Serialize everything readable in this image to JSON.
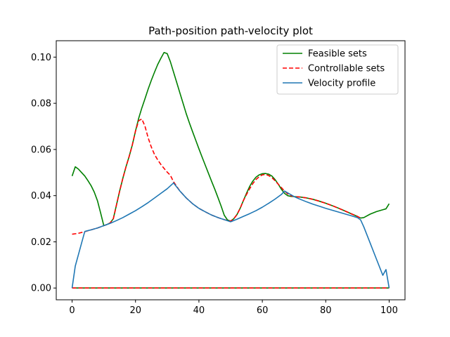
{
  "chart_data": {
    "type": "line",
    "title": "Path-position path-velocity plot",
    "xlabel": "",
    "ylabel": "",
    "xlim": [
      -5,
      105
    ],
    "ylim": [
      -0.0051,
      0.1071
    ],
    "xticks": [
      0,
      20,
      40,
      60,
      80,
      100
    ],
    "xtick_labels": [
      "0",
      "20",
      "40",
      "60",
      "80",
      "100"
    ],
    "yticks": [
      0.0,
      0.02,
      0.04,
      0.06,
      0.08,
      0.1
    ],
    "ytick_labels": [
      "0.00",
      "0.02",
      "0.04",
      "0.06",
      "0.08",
      "0.10"
    ],
    "grid": false,
    "legend_position": "top-right",
    "series": [
      {
        "name": "Feasible sets",
        "color": "#008000",
        "style": "solid",
        "upper": [
          [
            0,
            0.0485
          ],
          [
            1,
            0.0525
          ],
          [
            2,
            0.0515
          ],
          [
            3,
            0.05
          ],
          [
            4,
            0.0485
          ],
          [
            5,
            0.0465
          ],
          [
            6,
            0.0443
          ],
          [
            7,
            0.0415
          ],
          [
            8,
            0.0378
          ],
          [
            9,
            0.0325
          ],
          [
            10,
            0.027
          ],
          [
            11,
            0.0275
          ],
          [
            12,
            0.0282
          ],
          [
            13,
            0.03
          ],
          [
            14,
            0.036
          ],
          [
            15,
            0.042
          ],
          [
            16,
            0.0475
          ],
          [
            17,
            0.0525
          ],
          [
            18,
            0.057
          ],
          [
            19,
            0.062
          ],
          [
            20,
            0.068
          ],
          [
            21,
            0.0735
          ],
          [
            22,
            0.078
          ],
          [
            23,
            0.082
          ],
          [
            24,
            0.0862
          ],
          [
            25,
            0.09
          ],
          [
            26,
            0.0935
          ],
          [
            27,
            0.0968
          ],
          [
            28,
            0.0995
          ],
          [
            29,
            0.102
          ],
          [
            30,
            0.1015
          ],
          [
            31,
            0.098
          ],
          [
            32,
            0.0935
          ],
          [
            33,
            0.089
          ],
          [
            34,
            0.0845
          ],
          [
            35,
            0.08
          ],
          [
            36,
            0.0755
          ],
          [
            37,
            0.0715
          ],
          [
            38,
            0.0677
          ],
          [
            39,
            0.064
          ],
          [
            40,
            0.0603
          ],
          [
            41,
            0.0567
          ],
          [
            42,
            0.0532
          ],
          [
            43,
            0.0497
          ],
          [
            44,
            0.0462
          ],
          [
            45,
            0.0428
          ],
          [
            46,
            0.0392
          ],
          [
            47,
            0.0355
          ],
          [
            48,
            0.0315
          ],
          [
            49,
            0.0295
          ],
          [
            50,
            0.029
          ],
          [
            51,
            0.03
          ],
          [
            52,
            0.0318
          ],
          [
            53,
            0.0345
          ],
          [
            54,
            0.0378
          ],
          [
            55,
            0.041
          ],
          [
            56,
            0.044
          ],
          [
            57,
            0.0463
          ],
          [
            58,
            0.048
          ],
          [
            59,
            0.049
          ],
          [
            60,
            0.0495
          ],
          [
            61,
            0.0496
          ],
          [
            62,
            0.0493
          ],
          [
            63,
            0.0485
          ],
          [
            64,
            0.047
          ],
          [
            65,
            0.045
          ],
          [
            66,
            0.0428
          ],
          [
            67,
            0.041
          ],
          [
            68,
            0.04
          ],
          [
            69,
            0.0397
          ],
          [
            70,
            0.0396
          ],
          [
            72,
            0.0394
          ],
          [
            74,
            0.039
          ],
          [
            76,
            0.0384
          ],
          [
            78,
            0.0376
          ],
          [
            80,
            0.0367
          ],
          [
            82,
            0.0357
          ],
          [
            84,
            0.0346
          ],
          [
            86,
            0.0334
          ],
          [
            88,
            0.0322
          ],
          [
            90,
            0.031
          ],
          [
            91,
            0.0303
          ],
          [
            92,
            0.0305
          ],
          [
            94,
            0.032
          ],
          [
            96,
            0.0331
          ],
          [
            98,
            0.0339
          ],
          [
            99,
            0.0343
          ],
          [
            100,
            0.0365
          ]
        ],
        "lower": [
          [
            0,
            0.0
          ],
          [
            100,
            0.0
          ]
        ]
      },
      {
        "name": "Controllable sets",
        "color": "#ff0000",
        "style": "dashed",
        "upper": [
          [
            0,
            0.0233
          ],
          [
            2,
            0.0237
          ],
          [
            4,
            0.0244
          ],
          [
            6,
            0.0252
          ],
          [
            8,
            0.026
          ],
          [
            10,
            0.027
          ],
          [
            11,
            0.0275
          ],
          [
            12,
            0.0282
          ],
          [
            13,
            0.03
          ],
          [
            14,
            0.036
          ],
          [
            15,
            0.042
          ],
          [
            16,
            0.0475
          ],
          [
            17,
            0.0525
          ],
          [
            18,
            0.057
          ],
          [
            19,
            0.062
          ],
          [
            20,
            0.068
          ],
          [
            21,
            0.0725
          ],
          [
            22,
            0.0732
          ],
          [
            23,
            0.07
          ],
          [
            24,
            0.065
          ],
          [
            25,
            0.061
          ],
          [
            26,
            0.0578
          ],
          [
            27,
            0.0555
          ],
          [
            28,
            0.0535
          ],
          [
            29,
            0.0518
          ],
          [
            30,
            0.0502
          ],
          [
            31,
            0.0488
          ],
          [
            32,
            0.046
          ],
          [
            34,
            0.042
          ],
          [
            36,
            0.039
          ],
          [
            38,
            0.0365
          ],
          [
            40,
            0.0345
          ],
          [
            42,
            0.033
          ],
          [
            44,
            0.0316
          ],
          [
            46,
            0.0305
          ],
          [
            48,
            0.0296
          ],
          [
            50,
            0.029
          ],
          [
            51,
            0.03
          ],
          [
            52,
            0.0318
          ],
          [
            53,
            0.0345
          ],
          [
            54,
            0.0378
          ],
          [
            55,
            0.0405
          ],
          [
            56,
            0.043
          ],
          [
            57,
            0.0452
          ],
          [
            58,
            0.047
          ],
          [
            59,
            0.0482
          ],
          [
            60,
            0.049
          ],
          [
            61,
            0.0492
          ],
          [
            62,
            0.0487
          ],
          [
            63,
            0.0478
          ],
          [
            64,
            0.0465
          ],
          [
            65,
            0.045
          ],
          [
            66,
            0.0435
          ],
          [
            67,
            0.042
          ],
          [
            68,
            0.0408
          ],
          [
            69,
            0.04
          ],
          [
            70,
            0.0396
          ],
          [
            72,
            0.0394
          ],
          [
            74,
            0.039
          ],
          [
            76,
            0.0384
          ],
          [
            78,
            0.0376
          ],
          [
            80,
            0.0367
          ],
          [
            82,
            0.0357
          ],
          [
            84,
            0.0346
          ],
          [
            86,
            0.0334
          ],
          [
            88,
            0.0322
          ],
          [
            90,
            0.031
          ],
          [
            91,
            0.0303
          ]
        ],
        "lower": [
          [
            0,
            0.0
          ],
          [
            100,
            0.0
          ]
        ]
      },
      {
        "name": "Velocity profile",
        "color": "#1f77b4",
        "style": "solid",
        "values": [
          [
            0,
            0.0
          ],
          [
            1,
            0.0095
          ],
          [
            2,
            0.0145
          ],
          [
            3,
            0.0195
          ],
          [
            4,
            0.0245
          ],
          [
            6,
            0.0252
          ],
          [
            8,
            0.026
          ],
          [
            10,
            0.027
          ],
          [
            12,
            0.028
          ],
          [
            14,
            0.0292
          ],
          [
            16,
            0.0305
          ],
          [
            18,
            0.032
          ],
          [
            20,
            0.0335
          ],
          [
            22,
            0.0352
          ],
          [
            24,
            0.037
          ],
          [
            26,
            0.039
          ],
          [
            28,
            0.041
          ],
          [
            30,
            0.043
          ],
          [
            32,
            0.0455
          ],
          [
            34,
            0.042
          ],
          [
            36,
            0.039
          ],
          [
            38,
            0.0365
          ],
          [
            40,
            0.0345
          ],
          [
            42,
            0.033
          ],
          [
            44,
            0.0316
          ],
          [
            46,
            0.0305
          ],
          [
            48,
            0.0296
          ],
          [
            50,
            0.0287
          ],
          [
            52,
            0.0298
          ],
          [
            54,
            0.031
          ],
          [
            56,
            0.0322
          ],
          [
            58,
            0.0335
          ],
          [
            60,
            0.035
          ],
          [
            62,
            0.0367
          ],
          [
            64,
            0.0385
          ],
          [
            66,
            0.0405
          ],
          [
            67,
            0.042
          ],
          [
            68,
            0.0412
          ],
          [
            70,
            0.0396
          ],
          [
            72,
            0.0384
          ],
          [
            74,
            0.0373
          ],
          [
            76,
            0.0363
          ],
          [
            78,
            0.0354
          ],
          [
            80,
            0.0345
          ],
          [
            82,
            0.0337
          ],
          [
            84,
            0.0329
          ],
          [
            86,
            0.0321
          ],
          [
            88,
            0.0313
          ],
          [
            90,
            0.0305
          ],
          [
            91,
            0.0295
          ],
          [
            92,
            0.0265
          ],
          [
            93,
            0.023
          ],
          [
            94,
            0.0195
          ],
          [
            95,
            0.016
          ],
          [
            96,
            0.0125
          ],
          [
            97,
            0.009
          ],
          [
            98,
            0.0055
          ],
          [
            99,
            0.008
          ],
          [
            100,
            0.0
          ]
        ]
      }
    ]
  }
}
